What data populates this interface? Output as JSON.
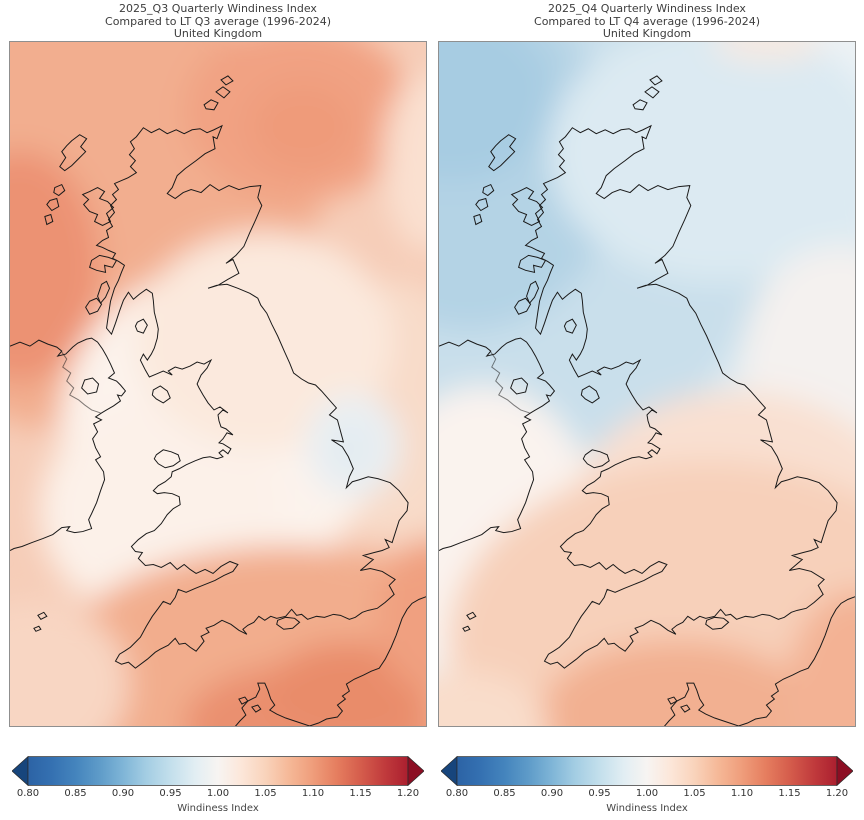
{
  "figure": {
    "panels": [
      {
        "id": "q3",
        "title_line1": "2025_Q3 Quarterly Windiness Index",
        "title_line2": "Compared to LT Q3 average (1996-2024)",
        "title_line3": "United Kingdom"
      },
      {
        "id": "q4",
        "title_line1": "2025_Q4 Quarterly Windiness Index",
        "title_line2": "Compared to LT Q4 average (1996-2024)",
        "title_line3": "United Kingdom"
      }
    ],
    "colorbar": {
      "label": "Windiness Index",
      "ticks": [
        "0.80",
        "0.85",
        "0.90",
        "0.95",
        "1.00",
        "1.05",
        "1.10",
        "1.15",
        "1.20"
      ],
      "range": [
        0.8,
        1.2
      ]
    }
  },
  "palette": {
    "colormap": "RdBu_r",
    "below_average_blue": "#2c63a5",
    "neutral_white": "#f7f4f2",
    "above_average_red": "#ab1f2f",
    "under_arrow": "#17457c",
    "over_arrow": "#8c0e23",
    "coastline": "#1a1a1a",
    "frame": "#8f8f8f"
  },
  "chart_data": [
    {
      "type": "heatmap",
      "subtype": "filled-contour-geographic-map",
      "title": "2025_Q3 Quarterly Windiness Index",
      "subtitle": "Compared to LT Q3 average (1996-2024)",
      "region_label": "United Kingdom",
      "colorbar_label": "Windiness Index",
      "value_range": [
        0.8,
        1.2
      ],
      "tick_step": 0.05,
      "estimated_region_values": {
        "atlantic-northwest-of-scotland": 1.12,
        "north-scotland": 1.08,
        "north-sea-northeast": 1.1,
        "central-scotland": 1.05,
        "northern-ireland": 1.05,
        "irish-sea": 1.02,
        "wales-central-england": 1.0,
        "north-sea-off-yorkshire": 0.99,
        "southern-england": 1.05,
        "english-channel": 1.12,
        "southeast-england": 1.1
      }
    },
    {
      "type": "heatmap",
      "subtype": "filled-contour-geographic-map",
      "title": "2025_Q4 Quarterly Windiness Index",
      "subtitle": "Compared to LT Q4 average (1996-2024)",
      "region_label": "United Kingdom",
      "colorbar_label": "Windiness Index",
      "value_range": [
        0.8,
        1.2
      ],
      "tick_step": 0.05,
      "estimated_region_values": {
        "atlantic-northwest-of-scotland": 0.9,
        "north-scotland": 0.93,
        "central-scotland": 0.96,
        "northern-england": 0.99,
        "ireland": 1.0,
        "wales": 1.02,
        "central-england": 1.04,
        "southern-england": 1.07,
        "english-channel": 1.1,
        "southeast-england": 1.08
      }
    }
  ]
}
